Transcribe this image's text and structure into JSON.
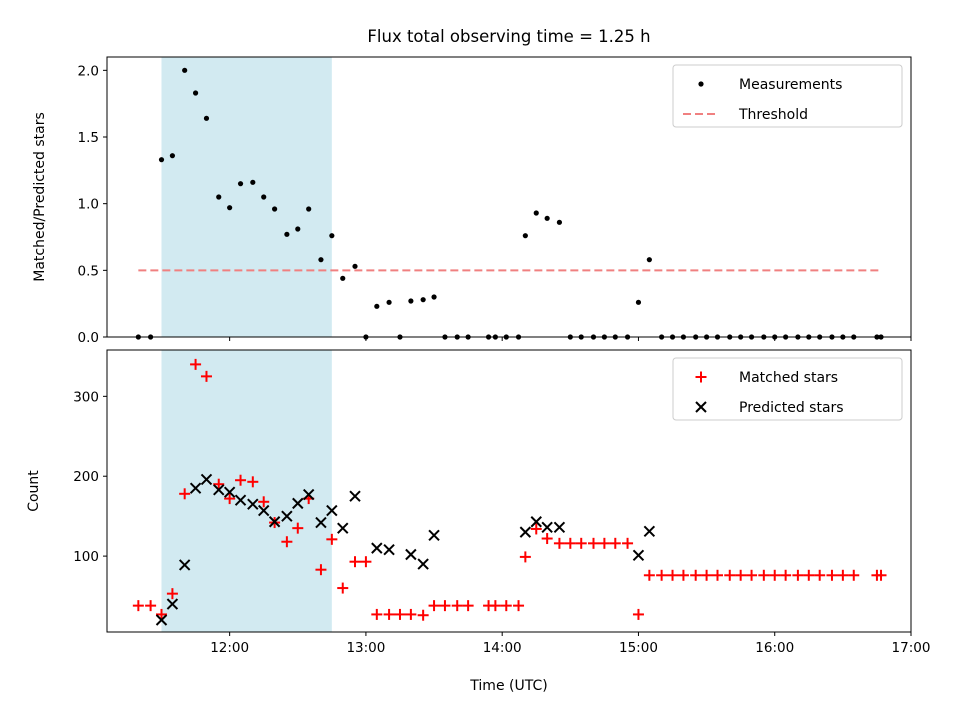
{
  "chart_data": {
    "type": "scatter",
    "title": "Flux total observing time = 1.25 h",
    "xlabel": "Time (UTC)",
    "x_unit": "hours UTC",
    "x_ticks": [
      "12:00",
      "13:00",
      "14:00",
      "15:00",
      "16:00",
      "17:00"
    ],
    "x_tick_values": [
      12,
      13,
      14,
      15,
      16,
      17
    ],
    "xlim": [
      11.1,
      17.0
    ],
    "shaded_interval": {
      "x": [
        11.5,
        12.75
      ],
      "color": "#add8e6"
    },
    "colors": {
      "measurements": "#000000",
      "threshold": "#f08080",
      "matched": "#ff0000",
      "predicted": "#000000"
    },
    "panels": [
      {
        "ylabel": "Matched/Predicted stars",
        "ylim": [
          0,
          2.1
        ],
        "y_ticks": [
          "0.0",
          "0.5",
          "1.0",
          "1.5",
          "2.0"
        ],
        "y_tick_values": [
          0,
          0.5,
          1.0,
          1.5,
          2.0
        ],
        "legend": {
          "placement": "upper right",
          "entries": [
            "Measurements",
            "Threshold"
          ]
        },
        "series": [
          {
            "name": "Measurements",
            "kind": "dot",
            "x": [
              11.33,
              11.42,
              11.5,
              11.58,
              11.67,
              11.75,
              11.83,
              11.92,
              12.0,
              12.08,
              12.17,
              12.25,
              12.33,
              12.42,
              12.5,
              12.58,
              12.67,
              12.75,
              12.83,
              12.92,
              13.0,
              13.08,
              13.17,
              13.25,
              13.33,
              13.42,
              13.5,
              13.58,
              13.67,
              13.75,
              13.9,
              13.95,
              14.03,
              14.12,
              14.17,
              14.25,
              14.33,
              14.42,
              14.5,
              14.58,
              14.67,
              14.75,
              14.83,
              14.92,
              15.0,
              15.08,
              15.17,
              15.25,
              15.33,
              15.42,
              15.5,
              15.58,
              15.67,
              15.75,
              15.83,
              15.92,
              16.0,
              16.08,
              16.17,
              16.25,
              16.33,
              16.42,
              16.5,
              16.58,
              16.75,
              16.78
            ],
            "y": [
              0,
              0,
              1.33,
              1.36,
              2.0,
              1.83,
              1.64,
              1.05,
              0.97,
              1.15,
              1.16,
              1.05,
              0.96,
              0.77,
              0.81,
              0.96,
              0.58,
              0.76,
              0.44,
              0.53,
              0,
              0.23,
              0.26,
              0,
              0.27,
              0.28,
              0.3,
              0,
              0,
              0,
              0,
              0,
              0,
              0,
              0.76,
              0.93,
              0.89,
              0.86,
              0,
              0,
              0,
              0,
              0,
              0,
              0.26,
              0.58,
              0,
              0,
              0,
              0,
              0,
              0,
              0,
              0,
              0,
              0,
              0,
              0,
              0,
              0,
              0,
              0,
              0,
              0,
              0,
              0
            ]
          },
          {
            "name": "Threshold",
            "kind": "dashed-line",
            "x": [
              11.33,
              16.78
            ],
            "y": [
              0.5,
              0.5
            ]
          }
        ]
      },
      {
        "ylabel": "Count",
        "ylim": [
          5,
          358
        ],
        "y_ticks": [
          "100",
          "200",
          "300"
        ],
        "y_tick_values": [
          100,
          200,
          300
        ],
        "legend": {
          "placement": "upper right",
          "entries": [
            "Matched stars",
            "Predicted stars"
          ]
        },
        "series": [
          {
            "name": "Matched stars",
            "kind": "plus",
            "x": [
              11.33,
              11.42,
              11.5,
              11.58,
              11.67,
              11.75,
              11.83,
              11.92,
              12.0,
              12.08,
              12.17,
              12.25,
              12.33,
              12.42,
              12.5,
              12.58,
              12.67,
              12.75,
              12.83,
              12.92,
              13.0,
              13.08,
              13.17,
              13.25,
              13.33,
              13.42,
              13.5,
              13.58,
              13.67,
              13.75,
              13.9,
              13.95,
              14.03,
              14.12,
              14.17,
              14.25,
              14.33,
              14.42,
              14.5,
              14.58,
              14.67,
              14.75,
              14.83,
              14.92,
              15.0,
              15.08,
              15.17,
              15.25,
              15.33,
              15.42,
              15.5,
              15.58,
              15.67,
              15.75,
              15.83,
              15.92,
              16.0,
              16.08,
              16.17,
              16.25,
              16.33,
              16.42,
              16.5,
              16.58,
              16.75,
              16.78
            ],
            "y": [
              38,
              38,
              27,
              53,
              178,
              340,
              325,
              190,
              172,
              195,
              193,
              168,
              142,
              118,
              135,
              172,
              83,
              121,
              60,
              93,
              93,
              27,
              27,
              27,
              27,
              26,
              38,
              38,
              38,
              38,
              38,
              38,
              38,
              38,
              99,
              134,
              122,
              116,
              116,
              116,
              116,
              116,
              116,
              116,
              27,
              76,
              76,
              76,
              76,
              76,
              76,
              76,
              76,
              76,
              76,
              76,
              76,
              76,
              76,
              76,
              76,
              76,
              76,
              76,
              76,
              76
            ]
          },
          {
            "name": "Predicted stars",
            "kind": "x",
            "x": [
              11.5,
              11.58,
              11.67,
              11.75,
              11.83,
              11.92,
              12.0,
              12.08,
              12.17,
              12.25,
              12.33,
              12.42,
              12.5,
              12.58,
              12.67,
              12.75,
              12.83,
              12.92,
              13.08,
              13.17,
              13.33,
              13.42,
              13.5,
              14.17,
              14.25,
              14.33,
              14.42,
              15.0,
              15.08
            ],
            "y": [
              20,
              40,
              89,
              185,
              196,
              183,
              180,
              170,
              165,
              157,
              143,
              150,
              166,
              177,
              142,
              157,
              135,
              175,
              110,
              108,
              102,
              90,
              126,
              130,
              143,
              136,
              136,
              101,
              131
            ]
          }
        ]
      }
    ]
  }
}
